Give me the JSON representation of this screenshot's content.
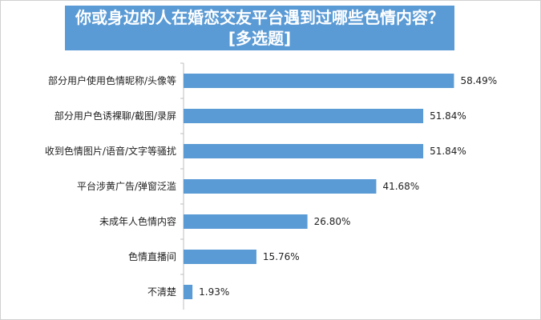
{
  "chart_data": {
    "type": "bar",
    "orientation": "horizontal",
    "title": "你或身边的人在婚恋交友平台遇到过哪些色情内容？",
    "subtitle": "[多选题]",
    "categories": [
      "部分用户使用色情昵称/头像等",
      "部分用户色诱裸聊/截图/录屏",
      "收到色情图片/语音/文字等骚扰",
      "平台涉黄广告/弹窗泛滥",
      "未成年人色情内容",
      "色情直播间",
      "不清楚"
    ],
    "values": [
      58.49,
      51.84,
      51.84,
      41.68,
      26.8,
      15.76,
      1.93
    ],
    "value_labels": [
      "58.49%",
      "51.84%",
      "51.84%",
      "41.68%",
      "26.80%",
      "15.76%",
      "1.93%"
    ],
    "xlim": [
      0,
      65
    ],
    "grid": false,
    "legend": "none",
    "bar_color": "#5b9bd5",
    "title_bg_color": "#5b9bd5"
  }
}
